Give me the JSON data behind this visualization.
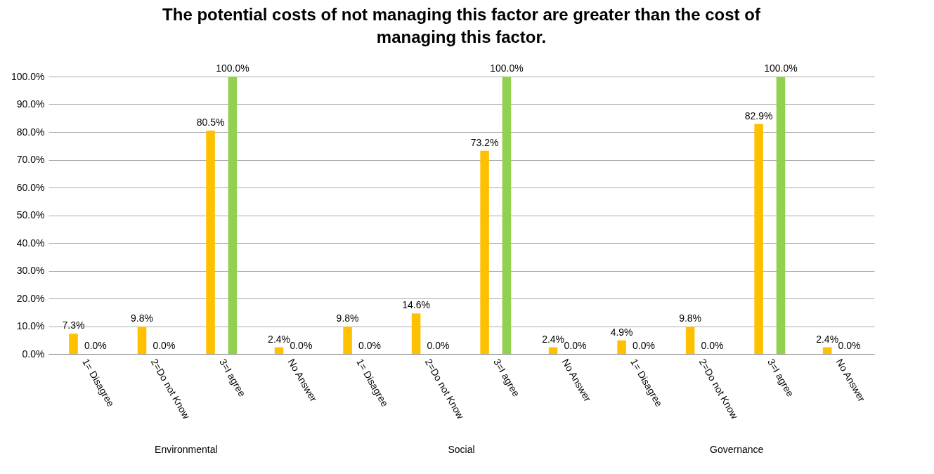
{
  "chart_data": {
    "type": "bar",
    "title": "The potential costs of not managing this factor are greater than the cost of managing this factor.",
    "categories": [
      "1= Disagree",
      "2=Do not Know",
      "3=I agree",
      "No Answer",
      "1= Disagree",
      "2=Do not Know",
      "3=I agree",
      "No Answer",
      "1= Disagree",
      "2=Do not Know",
      "3=I agree",
      "No Answer"
    ],
    "series": [
      {
        "color": "#ffc000",
        "values": [
          7.3,
          9.8,
          80.5,
          2.4,
          9.8,
          14.6,
          73.2,
          2.4,
          4.9,
          9.8,
          82.9,
          2.4
        ],
        "value_labels": [
          "7.3%",
          "9.8%",
          "80.5%",
          "2.4%",
          "9.8%",
          "14.6%",
          "73.2%",
          "2.4%",
          "4.9%",
          "9.8%",
          "82.9%",
          "2.4%"
        ]
      },
      {
        "color": "#92d050",
        "values": [
          0,
          0,
          100,
          0,
          0,
          0,
          100,
          0,
          0,
          0,
          100,
          0
        ],
        "value_labels": [
          "0.0%",
          "0.0%",
          "100.0%",
          "0.0%",
          "0.0%",
          "0.0%",
          "100.0%",
          "0.0%",
          "0.0%",
          "0.0%",
          "100.0%",
          "0.0%"
        ]
      }
    ],
    "annotations": [
      "Environmental",
      "Social",
      "Governance"
    ],
    "ylim": [
      0,
      100
    ],
    "yticks": [
      {
        "value": 0,
        "label": "0.0%"
      },
      {
        "value": 10,
        "label": "10.0%"
      },
      {
        "value": 20,
        "label": "20.0%"
      },
      {
        "value": 30,
        "label": "30.0%"
      },
      {
        "value": 40,
        "label": "40.0%"
      },
      {
        "value": 50,
        "label": "50.0%"
      },
      {
        "value": 60,
        "label": "60.0%"
      },
      {
        "value": 70,
        "label": "70.0%"
      },
      {
        "value": 80,
        "label": "80.0%"
      },
      {
        "value": 90,
        "label": "90.0%"
      },
      {
        "value": 100,
        "label": "100.0%"
      }
    ],
    "grid": "y"
  }
}
